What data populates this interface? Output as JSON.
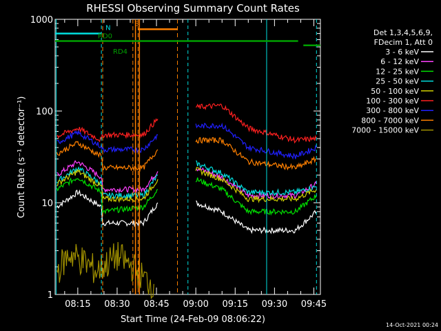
{
  "chart_data": {
    "type": "line",
    "title": "RHESSI Observing Summary Count Rates",
    "xlabel": "Start Time (24-Feb-09 08:06:22)",
    "ylabel": "Count Rate (s⁻¹ detector⁻¹)",
    "y_scale": "log",
    "ylim": [
      1,
      1000
    ],
    "xlim": [
      "08:06:22",
      "09:47:30"
    ],
    "y_ticks": [
      "1",
      "10",
      "100",
      "1000"
    ],
    "x_ticks": [
      "08:15",
      "08:30",
      "08:45",
      "09:00",
      "09:15",
      "09:30",
      "09:45"
    ],
    "legend_header": [
      "Det 1,3,4,5,6,9,",
      "FDecim 1, Att 0"
    ],
    "legend_placement": "right, outside plot",
    "series": [
      {
        "name": "3 - 6 keV",
        "color": "#ffffff",
        "x": [
          "08:07",
          "08:15",
          "08:24",
          "08:24:30",
          "08:40",
          "08:45:30",
          "08:58",
          "09:00",
          "09:10",
          "09:20",
          "09:38",
          "09:46"
        ],
        "y": [
          9,
          13,
          9,
          6,
          6,
          10,
          null,
          10,
          8,
          5,
          5,
          8
        ]
      },
      {
        "name": "6 - 12 keV",
        "color": "#ff40ff",
        "x": [
          "08:07",
          "08:15",
          "08:24",
          "08:24:30",
          "08:40",
          "08:45:30",
          "08:58",
          "09:00",
          "09:10",
          "09:20",
          "09:38",
          "09:46"
        ],
        "y": [
          20,
          28,
          19,
          14,
          14,
          22,
          null,
          24,
          19,
          12,
          12,
          16
        ]
      },
      {
        "name": "12 - 25 keV",
        "color": "#00e000",
        "x": [
          "08:07",
          "08:15",
          "08:24",
          "08:24:30",
          "08:40",
          "08:45:30",
          "08:58",
          "09:00",
          "09:10",
          "09:20",
          "09:38",
          "09:46"
        ],
        "y": [
          14,
          19,
          13,
          8,
          9,
          14,
          null,
          18,
          14,
          8,
          8,
          12
        ]
      },
      {
        "name": "25 - 50 keV",
        "color": "#00e0e0",
        "x": [
          "08:07",
          "08:15",
          "08:24",
          "08:24:30",
          "08:40",
          "08:45:30",
          "08:58",
          "09:00",
          "09:10",
          "09:20",
          "09:38",
          "09:46"
        ],
        "y": [
          17,
          24,
          16,
          12,
          12,
          20,
          null,
          27,
          21,
          13,
          13,
          15
        ]
      },
      {
        "name": "50 - 100 keV",
        "color": "#d0d000",
        "x": [
          "08:07",
          "08:15",
          "08:24",
          "08:24:30",
          "08:40",
          "08:45:30",
          "08:58",
          "09:00",
          "09:10",
          "09:20",
          "09:38",
          "09:46"
        ],
        "y": [
          16,
          22,
          15,
          11,
          11,
          18,
          null,
          23,
          18,
          11,
          11,
          14
        ]
      },
      {
        "name": "100 - 300 keV",
        "color": "#ff2020",
        "x": [
          "08:07",
          "08:15",
          "08:24",
          "08:24:30",
          "08:40",
          "08:45:30",
          "08:58",
          "09:00",
          "09:10",
          "09:20",
          "09:38",
          "09:46"
        ],
        "y": [
          53,
          65,
          48,
          55,
          55,
          82,
          null,
          110,
          115,
          65,
          48,
          50
        ]
      },
      {
        "name": "300 - 800 keV",
        "color": "#2020ff",
        "x": [
          "08:07",
          "08:15",
          "08:24",
          "08:24:30",
          "08:40",
          "08:45:30",
          "08:58",
          "09:00",
          "09:10",
          "09:20",
          "09:38",
          "09:46"
        ],
        "y": [
          45,
          58,
          41,
          38,
          38,
          55,
          null,
          68,
          70,
          40,
          32,
          40
        ]
      },
      {
        "name": "800 - 7000 keV",
        "color": "#ff8000",
        "x": [
          "08:07",
          "08:15",
          "08:24",
          "08:24:30",
          "08:40",
          "08:45:30",
          "08:58",
          "09:00",
          "09:10",
          "09:20",
          "09:38",
          "09:46"
        ],
        "y": [
          34,
          45,
          32,
          24,
          24,
          38,
          null,
          48,
          48,
          28,
          24,
          30
        ]
      },
      {
        "name": "7000 - 15000 keV",
        "color": "#a09000",
        "x": [
          "08:07",
          "08:12",
          "08:15",
          "08:18",
          "08:22",
          "08:30",
          "08:36",
          "08:40",
          "08:44"
        ],
        "y": [
          1.8,
          2.8,
          2.5,
          2.2,
          1.8,
          2.6,
          2.0,
          1.5,
          1.3
        ]
      }
    ],
    "annotations": [
      {
        "text": "N",
        "color": "#00e0e0",
        "x": [
          "08:06:22",
          "08:24"
        ],
        "y_level": 700
      },
      {
        "text": "S",
        "color": "#ff8000",
        "x": [
          "08:38",
          "08:53"
        ],
        "y_level": 780
      },
      {
        "text": "RD0",
        "color": "#00a000",
        "x": [
          "08:06:22",
          "09:39"
        ],
        "y_level": 580
      },
      {
        "text": "RD4",
        "color": "#00a000",
        "x": [
          "09:41",
          "09:47:30"
        ],
        "y_level": 520
      },
      {
        "text": "night boundaries",
        "color": "#00e0e0",
        "x": [
          "08:06:45",
          "08:24",
          "08:57",
          "09:27",
          "09:46"
        ]
      },
      {
        "text": "SAA boundaries",
        "color": "#ff8000",
        "x": [
          "08:24:30",
          "08:36",
          "08:38",
          "08:53"
        ]
      }
    ]
  },
  "footer_timestamp": "14-Oct-2021 00:24"
}
